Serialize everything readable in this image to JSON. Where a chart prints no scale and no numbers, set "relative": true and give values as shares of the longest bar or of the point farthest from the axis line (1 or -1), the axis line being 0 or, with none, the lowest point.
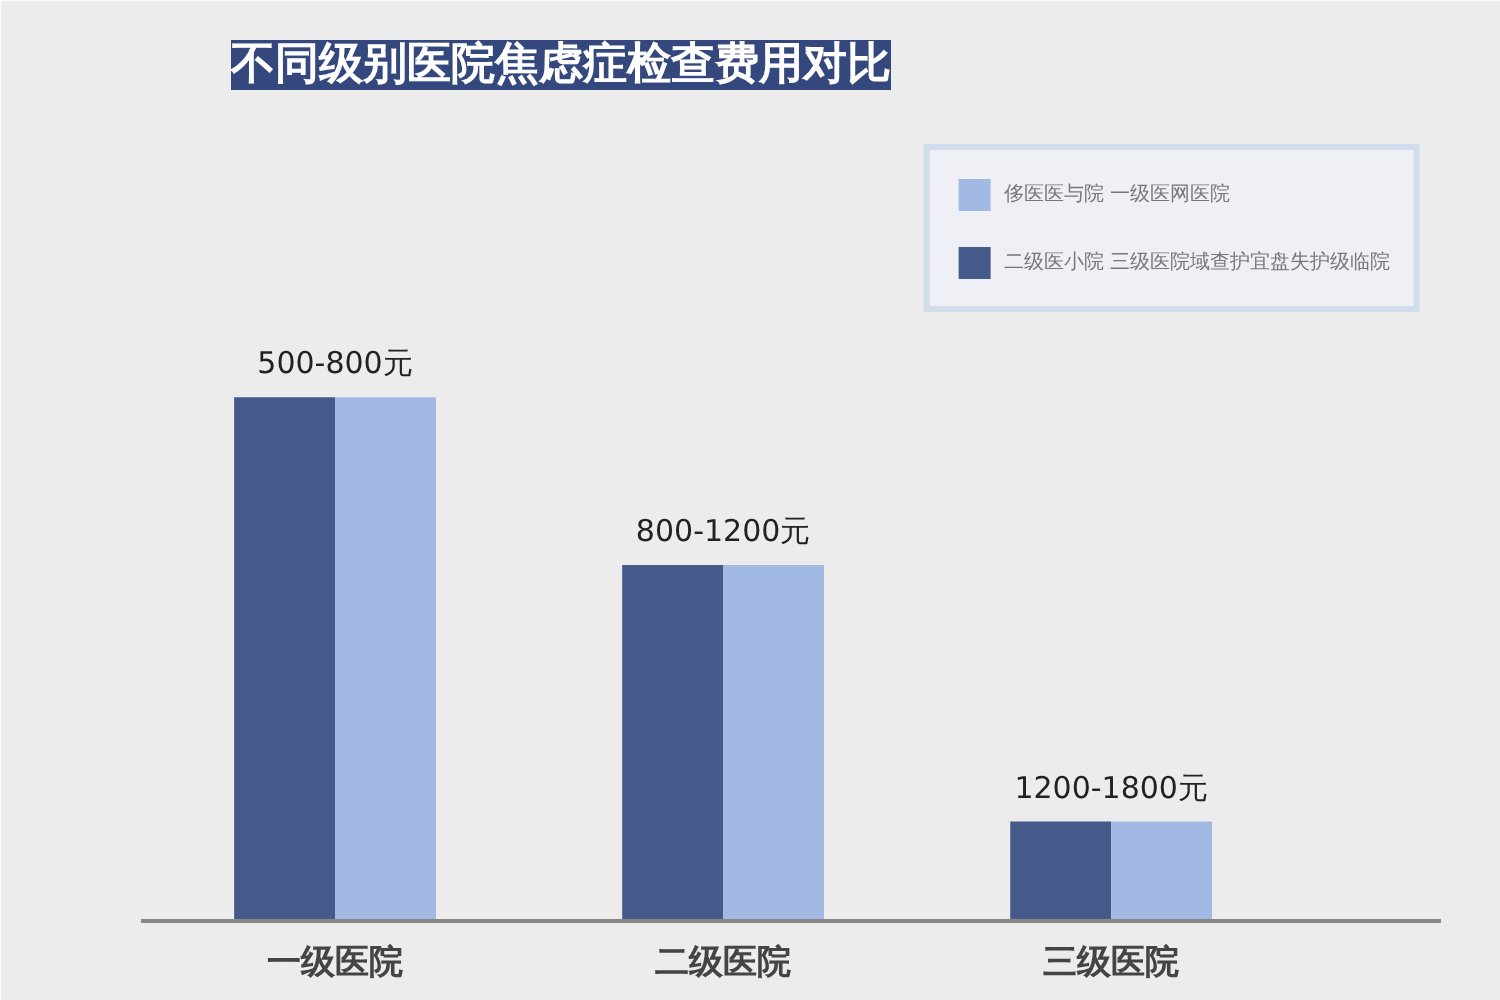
{
  "chart_data": {
    "type": "bar",
    "title": "不同级别医院焦虑症检查费用对比",
    "categories": [
      "一级医院",
      "二级医院",
      "三级医院"
    ],
    "series": [
      {
        "name": "二级医小院 三级医院域查护宜盘失护级临院",
        "color": "#46598b",
        "values": [
          1,
          0.68,
          0.19
        ]
      },
      {
        "name": "侈医医与院 一级医网医院",
        "color": "#a1b9e3",
        "values": [
          1,
          0.68,
          0.19
        ]
      }
    ],
    "relative": true,
    "legend": "top right",
    "annotations": [
      {
        "text": "500-800元",
        "x": "一级医院",
        "y": 1
      },
      {
        "text": "800-1200元",
        "x": "二级医院",
        "y": 0.68
      },
      {
        "text": "1200-1800元",
        "x": "三级医院",
        "y": 0.19
      }
    ]
  }
}
